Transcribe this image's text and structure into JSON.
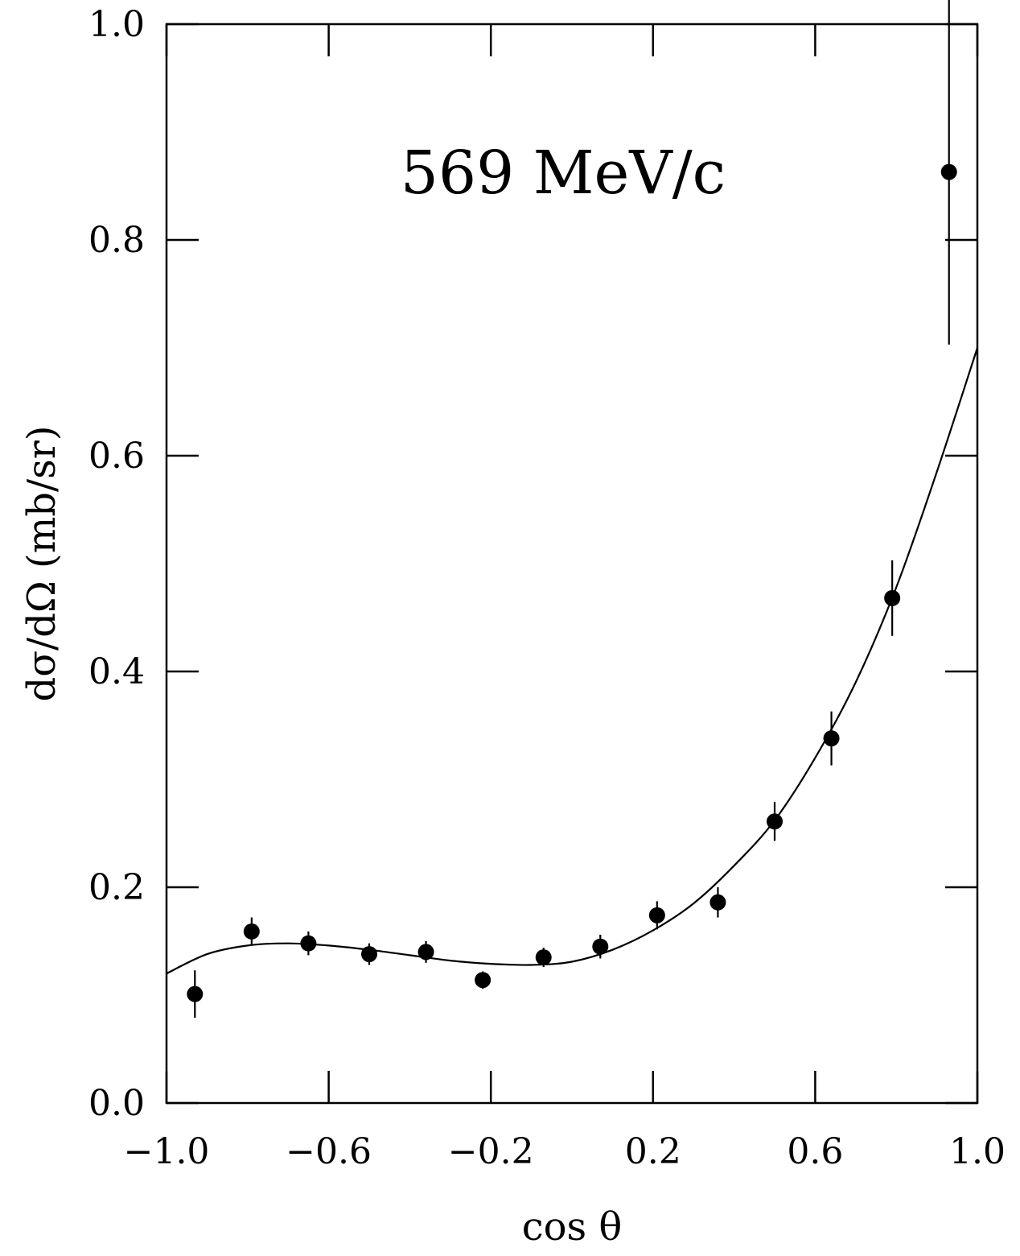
{
  "chart_data": {
    "type": "scatter",
    "title": "",
    "annotation": "569 MeV/c",
    "xlabel": "cos θ",
    "ylabel": "dσ/dΩ (mb/sr)",
    "xlim": [
      -1.0,
      1.0
    ],
    "ylim": [
      0.0,
      1.0
    ],
    "x_ticks": [
      "−1.0",
      "−0.6",
      "−0.2",
      "0.2",
      "0.6",
      "1.0"
    ],
    "x_tick_values": [
      -1.0,
      -0.6,
      -0.2,
      0.2,
      0.6,
      1.0
    ],
    "y_ticks": [
      "0.0",
      "0.2",
      "0.4",
      "0.6",
      "0.8",
      "1.0"
    ],
    "y_tick_values": [
      0.0,
      0.2,
      0.4,
      0.6,
      0.8,
      1.0
    ],
    "grid": false,
    "legend": "none",
    "series": [
      {
        "kind": "points_with_errorbars",
        "x": [
          -0.93,
          -0.79,
          -0.65,
          -0.5,
          -0.36,
          -0.22,
          -0.07,
          0.07,
          0.21,
          0.36,
          0.5,
          0.64,
          0.79,
          0.93
        ],
        "y": [
          0.101,
          0.159,
          0.148,
          0.138,
          0.14,
          0.114,
          0.135,
          0.145,
          0.174,
          0.186,
          0.261,
          0.338,
          0.468,
          0.863
        ],
        "err": [
          0.022,
          0.013,
          0.011,
          0.01,
          0.01,
          0.008,
          0.009,
          0.011,
          0.013,
          0.014,
          0.018,
          0.025,
          0.035,
          0.16
        ]
      },
      {
        "kind": "fit_curve",
        "x": [
          -1.0,
          -0.9,
          -0.8,
          -0.7,
          -0.6,
          -0.5,
          -0.4,
          -0.3,
          -0.2,
          -0.1,
          0.0,
          0.1,
          0.2,
          0.3,
          0.4,
          0.5,
          0.6,
          0.7,
          0.8,
          0.9,
          1.0
        ],
        "y": [
          0.12,
          0.138,
          0.146,
          0.148,
          0.146,
          0.142,
          0.137,
          0.132,
          0.129,
          0.128,
          0.131,
          0.142,
          0.16,
          0.185,
          0.22,
          0.262,
          0.32,
          0.39,
          0.478,
          0.585,
          0.7
        ]
      }
    ],
    "colors": {
      "ink": "#000000",
      "background": "#ffffff"
    }
  }
}
